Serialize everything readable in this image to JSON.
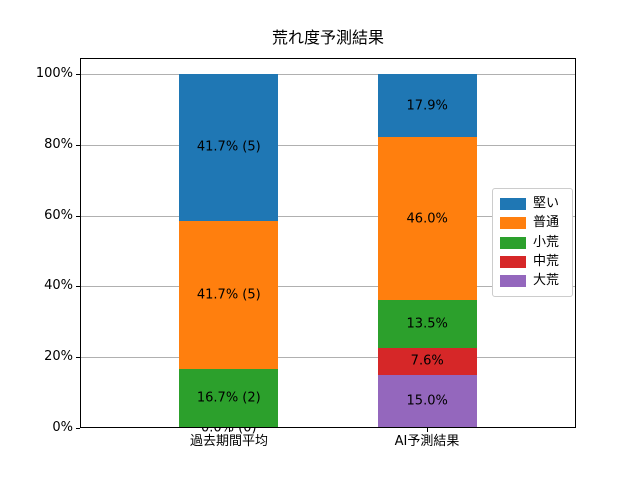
{
  "chart_data": {
    "type": "bar",
    "stacked": true,
    "orientation": "vertical",
    "title": "荒れ度予測結果",
    "categories": [
      "過去期間平均",
      "AI予測結果"
    ],
    "series": [
      {
        "name": "堅い",
        "color": "#1f77b4",
        "values": [
          41.7,
          17.9
        ]
      },
      {
        "name": "普通",
        "color": "#ff7f0e",
        "values": [
          41.7,
          46.0
        ]
      },
      {
        "name": "小荒",
        "color": "#2ca02c",
        "values": [
          16.7,
          13.5
        ]
      },
      {
        "name": "中荒",
        "color": "#d62728",
        "values": [
          0.0,
          7.6
        ]
      },
      {
        "name": "大荒",
        "color": "#9467bd",
        "values": [
          0.0,
          15.0
        ]
      }
    ],
    "bar_labels": [
      [
        "41.7% (5)",
        "41.7% (5)",
        "16.7% (2)",
        "",
        "0.0% (0)"
      ],
      [
        "17.9%",
        "46.0%",
        "13.5%",
        "7.6%",
        "15.0%"
      ]
    ],
    "y_ticks": [
      "0%",
      "20%",
      "40%",
      "60%",
      "80%",
      "100%"
    ],
    "y_tick_values": [
      0,
      20,
      40,
      60,
      80,
      100
    ],
    "ylim": [
      0,
      104.5
    ],
    "grid": true,
    "legend": {
      "position": "center right",
      "labels": [
        "堅い",
        "普通",
        "小荒",
        "中荒",
        "大荒"
      ]
    },
    "colors": {
      "grid": "#b0b0b0",
      "spine": "#000000",
      "background": "#ffffff",
      "text": "#000000"
    }
  }
}
